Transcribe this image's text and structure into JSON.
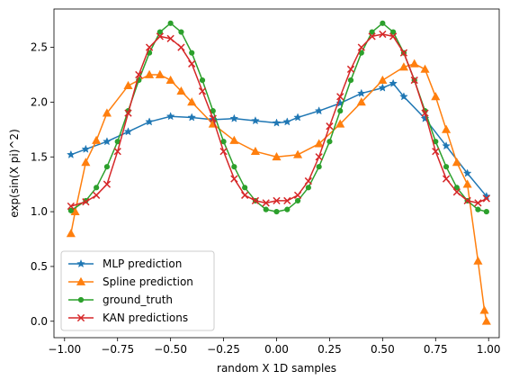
{
  "chart_data": {
    "type": "line",
    "title": "",
    "xlabel": "random X 1D samples",
    "ylabel": "exp(sin(X  pi)^2)",
    "xlim": [
      -1.05,
      1.05
    ],
    "ylim": [
      -0.15,
      2.85
    ],
    "xticks": [
      -1.0,
      -0.75,
      -0.5,
      -0.25,
      0.0,
      0.25,
      0.5,
      0.75,
      1.0
    ],
    "xtick_labels": [
      "−1.00",
      "−0.75",
      "−0.50",
      "−0.25",
      "0.00",
      "0.25",
      "0.50",
      "0.75",
      "1.00"
    ],
    "yticks": [
      0.0,
      0.5,
      1.0,
      1.5,
      2.0,
      2.5
    ],
    "ytick_labels": [
      "0.0",
      "0.5",
      "1.0",
      "1.5",
      "2.0",
      "2.5"
    ],
    "grid": false,
    "legend_position": "lower-left",
    "series": [
      {
        "name": "MLP prediction",
        "color": "#1f77b4",
        "marker": "star",
        "x": [
          -0.97,
          -0.9,
          -0.8,
          -0.7,
          -0.6,
          -0.5,
          -0.4,
          -0.3,
          -0.2,
          -0.1,
          0.0,
          0.05,
          0.1,
          0.2,
          0.3,
          0.4,
          0.5,
          0.55,
          0.6,
          0.7,
          0.8,
          0.9,
          0.99
        ],
        "y": [
          1.52,
          1.57,
          1.64,
          1.73,
          1.82,
          1.87,
          1.86,
          1.84,
          1.85,
          1.83,
          1.81,
          1.82,
          1.86,
          1.92,
          1.99,
          2.08,
          2.13,
          2.17,
          2.05,
          1.85,
          1.6,
          1.35,
          1.14
        ]
      },
      {
        "name": "Spline prediction",
        "color": "#ff7f0e",
        "marker": "triangle",
        "x": [
          -0.97,
          -0.95,
          -0.9,
          -0.85,
          -0.8,
          -0.7,
          -0.6,
          -0.55,
          -0.5,
          -0.45,
          -0.4,
          -0.3,
          -0.2,
          -0.1,
          0.0,
          0.1,
          0.2,
          0.3,
          0.4,
          0.5,
          0.6,
          0.65,
          0.7,
          0.75,
          0.8,
          0.85,
          0.9,
          0.95,
          0.98,
          0.99
        ],
        "y": [
          0.8,
          1.0,
          1.45,
          1.65,
          1.9,
          2.15,
          2.25,
          2.25,
          2.2,
          2.1,
          2.0,
          1.8,
          1.65,
          1.55,
          1.5,
          1.52,
          1.62,
          1.8,
          2.0,
          2.2,
          2.32,
          2.35,
          2.3,
          2.05,
          1.75,
          1.45,
          1.25,
          0.55,
          0.1,
          0.0
        ]
      },
      {
        "name": "ground_truth",
        "color": "#2ca02c",
        "marker": "circle",
        "x": [
          -0.97,
          -0.9,
          -0.85,
          -0.8,
          -0.75,
          -0.7,
          -0.65,
          -0.6,
          -0.55,
          -0.5,
          -0.45,
          -0.4,
          -0.35,
          -0.3,
          -0.25,
          -0.2,
          -0.15,
          -0.1,
          -0.05,
          0.0,
          0.05,
          0.1,
          0.15,
          0.2,
          0.25,
          0.3,
          0.35,
          0.4,
          0.45,
          0.5,
          0.55,
          0.6,
          0.65,
          0.7,
          0.75,
          0.8,
          0.85,
          0.9,
          0.95,
          0.99
        ],
        "y": [
          1.01,
          1.1,
          1.22,
          1.41,
          1.64,
          1.92,
          2.2,
          2.45,
          2.64,
          2.72,
          2.64,
          2.45,
          2.2,
          1.92,
          1.64,
          1.41,
          1.22,
          1.1,
          1.02,
          1.0,
          1.02,
          1.1,
          1.22,
          1.41,
          1.64,
          1.92,
          2.2,
          2.45,
          2.64,
          2.72,
          2.64,
          2.45,
          2.2,
          1.92,
          1.64,
          1.41,
          1.22,
          1.1,
          1.02,
          1.0
        ]
      },
      {
        "name": "KAN predictions",
        "color": "#d62728",
        "marker": "x",
        "x": [
          -0.97,
          -0.9,
          -0.85,
          -0.8,
          -0.75,
          -0.7,
          -0.65,
          -0.6,
          -0.55,
          -0.5,
          -0.45,
          -0.4,
          -0.35,
          -0.3,
          -0.25,
          -0.2,
          -0.15,
          -0.1,
          -0.05,
          0.0,
          0.05,
          0.1,
          0.15,
          0.2,
          0.25,
          0.3,
          0.35,
          0.4,
          0.45,
          0.5,
          0.55,
          0.6,
          0.65,
          0.7,
          0.75,
          0.8,
          0.85,
          0.9,
          0.95,
          0.99
        ],
        "y": [
          1.05,
          1.09,
          1.15,
          1.25,
          1.55,
          1.9,
          2.25,
          2.5,
          2.6,
          2.58,
          2.5,
          2.35,
          2.1,
          1.85,
          1.55,
          1.3,
          1.15,
          1.1,
          1.08,
          1.1,
          1.1,
          1.15,
          1.28,
          1.5,
          1.78,
          2.05,
          2.3,
          2.5,
          2.6,
          2.62,
          2.6,
          2.45,
          2.2,
          1.9,
          1.55,
          1.3,
          1.18,
          1.1,
          1.08,
          1.12
        ]
      }
    ]
  }
}
